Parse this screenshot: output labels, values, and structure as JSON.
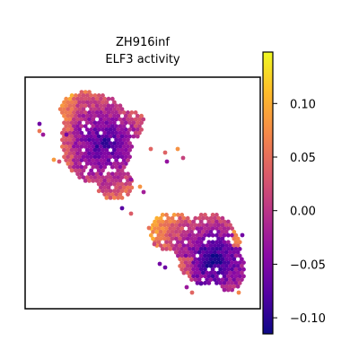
{
  "chart_data": {
    "type": "scatter",
    "title_lines": [
      "ZH916inf",
      "ELF3 activity"
    ],
    "xlabel": "",
    "ylabel": "",
    "axes_ticks": false,
    "grid": false,
    "colorbar": {
      "colormap": "plasma",
      "range": [
        -0.115,
        0.148
      ],
      "ticks": [
        0.1,
        0.05,
        0.0,
        -0.05,
        -0.1
      ],
      "tick_labels": [
        "0.10",
        "0.05",
        "0.00",
        "−0.05",
        "−0.10"
      ]
    },
    "colormap_stops": [
      "#0d0887",
      "#5302a3",
      "#8b0aa5",
      "#b83289",
      "#db5c68",
      "#f48849",
      "#febd2a",
      "#f0f921"
    ]
  }
}
